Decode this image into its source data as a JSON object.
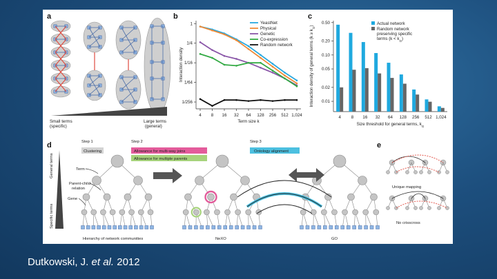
{
  "citation": {
    "authors": "Dutkowski, J.",
    "etal": "et al.",
    "year": "2012"
  },
  "panels": {
    "a": "a",
    "b": "b",
    "c": "c",
    "d": "d",
    "e": "e"
  },
  "panel_a": {
    "small_terms": "Small terms",
    "small_terms_sub": "(specific)",
    "large_terms": "Large terms",
    "large_terms_sub": "(general)"
  },
  "panel_d": {
    "step1": "Step 1",
    "step2": "Step 2",
    "step3": "Step 3",
    "clustering": "Clustering",
    "multiway": "Allowance for multi-way joins",
    "multiparent": "Allowance for multiple parents",
    "alignment": "Ontology alignment",
    "term": "Term",
    "parent_child": "Parent-child",
    "relation": "relation",
    "gene": "Gene",
    "general_terms": "General terms",
    "specific_terms": "Specific terms",
    "caption_left": "Hierarchy of network communities",
    "caption_mid": "NeXO",
    "caption_right": "GO",
    "colors": {
      "clustering": "#d3d3d3",
      "multiway": "#e35c9b",
      "multiparent": "#a7d37c",
      "alignment": "#4cc0e0"
    }
  },
  "panel_e": {
    "unique_mapping": "Unique mapping",
    "no_crisscross": "No crisscross"
  },
  "chart_data": [
    {
      "type": "line",
      "title": "",
      "xlabel": "Term size k",
      "ylabel": "Interaction density",
      "x": [
        "4",
        "8",
        "16",
        "32",
        "64",
        "128",
        "256",
        "512",
        "1,024"
      ],
      "yticks": [
        "1",
        "1/4",
        "1/16",
        "1/64",
        "1/256"
      ],
      "ylog2": true,
      "ylim_log2": [
        -8.7,
        0.3
      ],
      "series": [
        {
          "name": "YeastNet",
          "color": "#29a8e0",
          "log2_values": [
            -0.3,
            -0.6,
            -1.0,
            -1.6,
            -2.3,
            -3.2,
            -4.1,
            -5.0,
            -5.8
          ]
        },
        {
          "name": "Physical",
          "color": "#f08a36",
          "log2_values": [
            -0.3,
            -0.7,
            -1.1,
            -1.7,
            -2.6,
            -3.5,
            -4.4,
            -5.3,
            -6.1
          ]
        },
        {
          "name": "Genetic",
          "color": "#8a56a8",
          "log2_values": [
            -1.9,
            -2.7,
            -3.3,
            -3.6,
            -4.0,
            -4.5,
            -5.0,
            -5.6,
            -6.3
          ]
        },
        {
          "name": "Co-expression",
          "color": "#33aa44",
          "log2_values": [
            -3.1,
            -3.5,
            -4.2,
            -4.3,
            -4.0,
            -4.0,
            -4.8,
            -5.6,
            -6.4
          ]
        },
        {
          "name": "Random network",
          "color": "#111111",
          "log2_values": [
            -7.7,
            -8.4,
            -7.8,
            -7.8,
            -7.9,
            -7.8,
            -7.9,
            -7.8,
            -7.8
          ]
        }
      ]
    },
    {
      "type": "bar",
      "title": "",
      "xlabel": "Size threshold for general terms, k",
      "xlabel_sub": "G",
      "ylabel": "Interaction density of general terms (k ≥ k",
      "ylabel_sub": "G",
      "ylabel_end": ")",
      "categories": [
        "4",
        "8",
        "16",
        "32",
        "64",
        "128",
        "256",
        "512",
        "1,024"
      ],
      "yticks": [
        "0.50",
        "0.20",
        "0.10",
        "0.05",
        "0.02",
        "0.01"
      ],
      "ylog": true,
      "ylim": [
        0.006,
        0.55
      ],
      "series": [
        {
          "name": "Actual network",
          "color": "#1fa9df",
          "values": [
            0.45,
            0.3,
            0.19,
            0.11,
            0.068,
            0.038,
            0.018,
            0.011,
            0.0078
          ]
        },
        {
          "name": "Random network preserving specific terms (k < k",
          "name_sub": "G",
          "name_end": ")",
          "color": "#666666",
          "values": [
            0.02,
            0.048,
            0.052,
            0.04,
            0.032,
            0.024,
            0.014,
            0.0098,
            0.0072
          ]
        }
      ]
    }
  ]
}
